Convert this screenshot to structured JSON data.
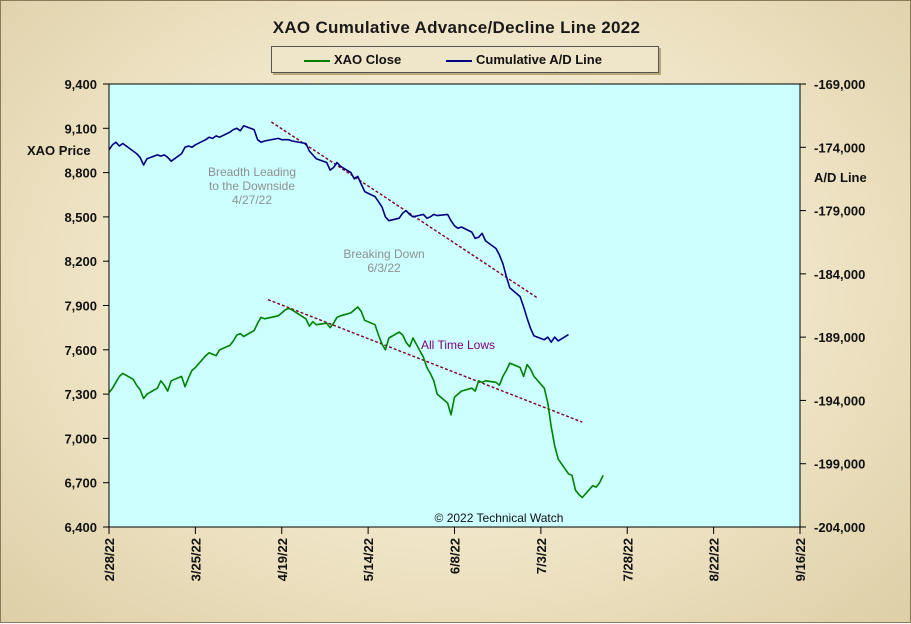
{
  "chart_data": {
    "type": "line",
    "title": "XAO Cumulative Advance/Decline Line 2022",
    "left_axis": {
      "label": "XAO Price",
      "ylim": [
        6400,
        9400
      ],
      "ticks": [
        "6,400",
        "6,700",
        "7,000",
        "7,300",
        "7,600",
        "7,900",
        "8,200",
        "8,500",
        "8,800",
        "9,100",
        "9,400"
      ]
    },
    "right_axis": {
      "label": "A/D Line",
      "ylim": [
        -204000,
        -169000
      ],
      "ticks": [
        "-204,000",
        "-199,000",
        "-194,000",
        "-189,000",
        "-184,000",
        "-179,000",
        "-174,000",
        "-169,000"
      ]
    },
    "x_axis": {
      "ticks": [
        "2/28/22",
        "3/25/22",
        "4/19/22",
        "5/14/22",
        "6/8/22",
        "7/3/22",
        "7/28/22",
        "8/22/22",
        "9/16/22"
      ]
    },
    "legend": {
      "placement": "top-center",
      "items": [
        "XAO Close",
        "Cumulative A/D Line"
      ]
    },
    "grid": false,
    "colors": {
      "plot_bg": "#ccffff",
      "xao": "#008000",
      "ad": "#000080",
      "trend": "#800020",
      "annotation_gray": "#909090",
      "annotation_purple": "#800080"
    },
    "series": [
      {
        "name": "XAO Close",
        "axis": "left",
        "points": [
          [
            "2022-02-28",
            7310
          ],
          [
            "2022-03-01",
            7340
          ],
          [
            "2022-03-02",
            7380
          ],
          [
            "2022-03-03",
            7420
          ],
          [
            "2022-03-04",
            7440
          ],
          [
            "2022-03-07",
            7400
          ],
          [
            "2022-03-08",
            7360
          ],
          [
            "2022-03-09",
            7330
          ],
          [
            "2022-03-10",
            7270
          ],
          [
            "2022-03-11",
            7300
          ],
          [
            "2022-03-14",
            7340
          ],
          [
            "2022-03-15",
            7390
          ],
          [
            "2022-03-16",
            7360
          ],
          [
            "2022-03-17",
            7320
          ],
          [
            "2022-03-18",
            7390
          ],
          [
            "2022-03-21",
            7420
          ],
          [
            "2022-03-22",
            7350
          ],
          [
            "2022-03-23",
            7410
          ],
          [
            "2022-03-24",
            7460
          ],
          [
            "2022-03-25",
            7480
          ],
          [
            "2022-03-28",
            7560
          ],
          [
            "2022-03-29",
            7580
          ],
          [
            "2022-03-30",
            7570
          ],
          [
            "2022-03-31",
            7560
          ],
          [
            "2022-04-01",
            7600
          ],
          [
            "2022-04-04",
            7630
          ],
          [
            "2022-04-05",
            7660
          ],
          [
            "2022-04-06",
            7700
          ],
          [
            "2022-04-07",
            7710
          ],
          [
            "2022-04-08",
            7690
          ],
          [
            "2022-04-11",
            7730
          ],
          [
            "2022-04-12",
            7780
          ],
          [
            "2022-04-13",
            7820
          ],
          [
            "2022-04-14",
            7810
          ],
          [
            "2022-04-18",
            7830
          ],
          [
            "2022-04-19",
            7850
          ],
          [
            "2022-04-20",
            7870
          ],
          [
            "2022-04-21",
            7880
          ],
          [
            "2022-04-22",
            7870
          ],
          [
            "2022-04-26",
            7810
          ],
          [
            "2022-04-27",
            7760
          ],
          [
            "2022-04-28",
            7790
          ],
          [
            "2022-04-29",
            7770
          ],
          [
            "2022-05-02",
            7780
          ],
          [
            "2022-05-03",
            7750
          ],
          [
            "2022-05-04",
            7780
          ],
          [
            "2022-05-05",
            7820
          ],
          [
            "2022-05-06",
            7830
          ],
          [
            "2022-05-09",
            7850
          ],
          [
            "2022-05-10",
            7870
          ],
          [
            "2022-05-11",
            7890
          ],
          [
            "2022-05-12",
            7860
          ],
          [
            "2022-05-13",
            7800
          ],
          [
            "2022-05-16",
            7770
          ],
          [
            "2022-05-17",
            7700
          ],
          [
            "2022-05-18",
            7640
          ],
          [
            "2022-05-19",
            7600
          ],
          [
            "2022-05-20",
            7680
          ],
          [
            "2022-05-23",
            7720
          ],
          [
            "2022-05-24",
            7700
          ],
          [
            "2022-05-25",
            7650
          ],
          [
            "2022-05-26",
            7620
          ],
          [
            "2022-05-27",
            7680
          ],
          [
            "2022-05-30",
            7550
          ],
          [
            "2022-05-31",
            7480
          ],
          [
            "2022-06-01",
            7440
          ],
          [
            "2022-06-02",
            7390
          ],
          [
            "2022-06-03",
            7300
          ],
          [
            "2022-06-06",
            7240
          ],
          [
            "2022-06-07",
            7160
          ],
          [
            "2022-06-08",
            7280
          ],
          [
            "2022-06-09",
            7300
          ],
          [
            "2022-06-10",
            7320
          ],
          [
            "2022-06-13",
            7340
          ],
          [
            "2022-06-14",
            7320
          ],
          [
            "2022-06-15",
            7390
          ],
          [
            "2022-06-16",
            7380
          ],
          [
            "2022-06-17",
            7390
          ],
          [
            "2022-06-20",
            7380
          ],
          [
            "2022-06-21",
            7360
          ],
          [
            "2022-06-22",
            7420
          ],
          [
            "2022-06-23",
            7460
          ],
          [
            "2022-06-24",
            7510
          ],
          [
            "2022-06-27",
            7480
          ],
          [
            "2022-06-28",
            7420
          ],
          [
            "2022-06-29",
            7500
          ],
          [
            "2022-06-30",
            7470
          ],
          [
            "2022-07-01",
            7420
          ],
          [
            "2022-07-04",
            7340
          ],
          [
            "2022-07-05",
            7240
          ],
          [
            "2022-07-06",
            7080
          ],
          [
            "2022-07-07",
            6950
          ],
          [
            "2022-07-08",
            6860
          ],
          [
            "2022-07-11",
            6760
          ],
          [
            "2022-07-12",
            6750
          ],
          [
            "2022-07-13",
            6650
          ],
          [
            "2022-07-14",
            6620
          ],
          [
            "2022-07-15",
            6600
          ],
          [
            "2022-07-18",
            6680
          ],
          [
            "2022-07-19",
            6670
          ],
          [
            "2022-07-20",
            6700
          ],
          [
            "2022-07-21",
            6750
          ]
        ]
      },
      {
        "name": "Cumulative A/D Line",
        "axis": "right",
        "points": [
          [
            "2022-02-28",
            -174200
          ],
          [
            "2022-03-01",
            -173800
          ],
          [
            "2022-03-02",
            -173600
          ],
          [
            "2022-03-03",
            -173900
          ],
          [
            "2022-03-04",
            -173700
          ],
          [
            "2022-03-07",
            -174300
          ],
          [
            "2022-03-08",
            -174500
          ],
          [
            "2022-03-09",
            -174800
          ],
          [
            "2022-03-10",
            -175400
          ],
          [
            "2022-03-11",
            -174900
          ],
          [
            "2022-03-14",
            -174600
          ],
          [
            "2022-03-15",
            -174700
          ],
          [
            "2022-03-16",
            -174600
          ],
          [
            "2022-03-17",
            -174800
          ],
          [
            "2022-03-18",
            -175100
          ],
          [
            "2022-03-21",
            -174500
          ],
          [
            "2022-03-22",
            -174000
          ],
          [
            "2022-03-23",
            -173900
          ],
          [
            "2022-03-24",
            -174000
          ],
          [
            "2022-03-25",
            -173800
          ],
          [
            "2022-03-28",
            -173400
          ],
          [
            "2022-03-29",
            -173200
          ],
          [
            "2022-03-30",
            -173300
          ],
          [
            "2022-03-31",
            -173100
          ],
          [
            "2022-04-01",
            -173200
          ],
          [
            "2022-04-04",
            -172800
          ],
          [
            "2022-04-05",
            -172600
          ],
          [
            "2022-04-06",
            -172500
          ],
          [
            "2022-04-07",
            -172700
          ],
          [
            "2022-04-08",
            -172300
          ],
          [
            "2022-04-11",
            -172600
          ],
          [
            "2022-04-12",
            -173400
          ],
          [
            "2022-04-13",
            -173600
          ],
          [
            "2022-04-14",
            -173500
          ],
          [
            "2022-04-18",
            -173300
          ],
          [
            "2022-04-19",
            -173400
          ],
          [
            "2022-04-20",
            -173400
          ],
          [
            "2022-04-21",
            -173400
          ],
          [
            "2022-04-22",
            -173500
          ],
          [
            "2022-04-26",
            -173700
          ],
          [
            "2022-04-27",
            -174300
          ],
          [
            "2022-04-28",
            -174600
          ],
          [
            "2022-04-29",
            -174900
          ],
          [
            "2022-05-02",
            -175200
          ],
          [
            "2022-05-03",
            -175800
          ],
          [
            "2022-05-04",
            -175600
          ],
          [
            "2022-05-05",
            -175200
          ],
          [
            "2022-05-06",
            -175500
          ],
          [
            "2022-05-09",
            -176000
          ],
          [
            "2022-05-10",
            -176500
          ],
          [
            "2022-05-11",
            -176300
          ],
          [
            "2022-05-12",
            -176900
          ],
          [
            "2022-05-13",
            -177500
          ],
          [
            "2022-05-16",
            -177900
          ],
          [
            "2022-05-17",
            -178300
          ],
          [
            "2022-05-18",
            -178700
          ],
          [
            "2022-05-19",
            -179500
          ],
          [
            "2022-05-20",
            -179800
          ],
          [
            "2022-05-23",
            -179600
          ],
          [
            "2022-05-24",
            -179200
          ],
          [
            "2022-05-25",
            -179000
          ],
          [
            "2022-05-26",
            -179300
          ],
          [
            "2022-05-27",
            -179500
          ],
          [
            "2022-05-30",
            -179300
          ],
          [
            "2022-05-31",
            -179600
          ],
          [
            "2022-06-01",
            -179500
          ],
          [
            "2022-06-02",
            -179300
          ],
          [
            "2022-06-03",
            -179400
          ],
          [
            "2022-06-06",
            -179300
          ],
          [
            "2022-06-07",
            -179800
          ],
          [
            "2022-06-08",
            -180200
          ],
          [
            "2022-06-09",
            -180400
          ],
          [
            "2022-06-10",
            -180300
          ],
          [
            "2022-06-13",
            -180700
          ],
          [
            "2022-06-14",
            -181200
          ],
          [
            "2022-06-15",
            -181100
          ],
          [
            "2022-06-16",
            -180800
          ],
          [
            "2022-06-17",
            -181400
          ],
          [
            "2022-06-20",
            -182000
          ],
          [
            "2022-06-21",
            -182500
          ],
          [
            "2022-06-22",
            -183200
          ],
          [
            "2022-06-23",
            -184200
          ],
          [
            "2022-06-24",
            -185100
          ],
          [
            "2022-06-27",
            -185800
          ],
          [
            "2022-06-28",
            -186600
          ],
          [
            "2022-06-29",
            -187500
          ],
          [
            "2022-06-30",
            -188300
          ],
          [
            "2022-07-01",
            -188900
          ],
          [
            "2022-07-04",
            -189200
          ],
          [
            "2022-07-05",
            -189000
          ],
          [
            "2022-07-06",
            -189400
          ],
          [
            "2022-07-07",
            -189000
          ],
          [
            "2022-07-08",
            -189300
          ],
          [
            "2022-07-11",
            -188800
          ]
        ]
      }
    ],
    "trendlines": [
      {
        "axis": "right",
        "from": [
          "2022-04-16",
          -172000
        ],
        "to": [
          "2022-07-02",
          -185900
        ]
      },
      {
        "axis": "left",
        "from": [
          "2022-04-15",
          7940
        ],
        "to": [
          "2022-07-15",
          7110
        ]
      }
    ],
    "annotations": [
      {
        "lines": [
          "Breadth Leading",
          "to the Downside",
          "4/27/22"
        ],
        "color": "gray"
      },
      {
        "lines": [
          "Breaking  Down",
          "6/3/22"
        ],
        "color": "gray"
      },
      {
        "lines": [
          "All Time Lows"
        ],
        "color": "purple"
      },
      {
        "lines": [
          "© 2022 Technical  Watch"
        ],
        "color": "black"
      }
    ]
  }
}
